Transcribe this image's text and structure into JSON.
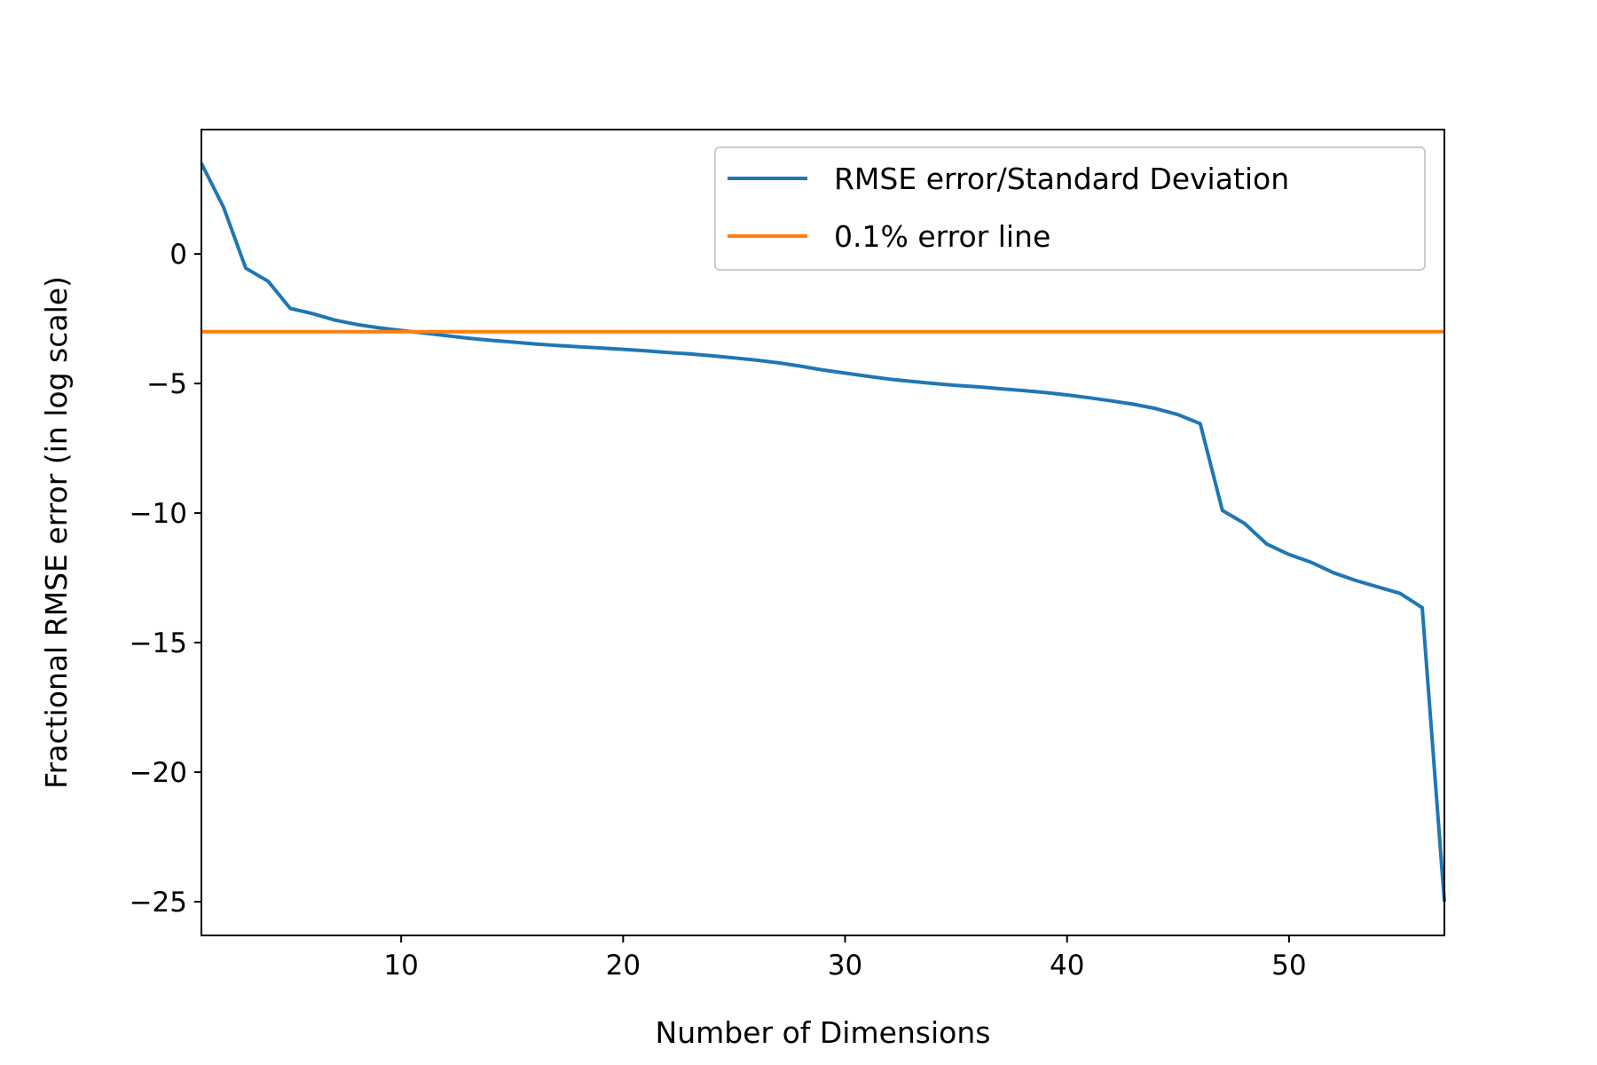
{
  "chart_data": {
    "type": "line",
    "title": "",
    "xlabel": "Number of Dimensions",
    "ylabel": "Fractional RMSE error (in log scale)",
    "xlim": [
      1,
      57
    ],
    "ylim": [
      -26.3,
      4.8
    ],
    "xticks": [
      10,
      20,
      30,
      40,
      50
    ],
    "yticks": [
      0,
      -5,
      -10,
      -15,
      -20,
      -25
    ],
    "grid": false,
    "legend_position": "top-right",
    "series": [
      {
        "name": "RMSE error/Standard Deviation",
        "color": "#1f77b4",
        "x": [
          1,
          2,
          3,
          4,
          5,
          6,
          7,
          8,
          9,
          10,
          11,
          12,
          13,
          14,
          15,
          16,
          17,
          18,
          19,
          20,
          21,
          22,
          23,
          24,
          25,
          26,
          27,
          28,
          29,
          30,
          31,
          32,
          33,
          34,
          35,
          36,
          37,
          38,
          39,
          40,
          41,
          42,
          43,
          44,
          45,
          46,
          47,
          48,
          49,
          50,
          51,
          52,
          53,
          54,
          55,
          56,
          57
        ],
        "y": [
          3.5,
          1.8,
          -0.55,
          -1.05,
          -2.1,
          -2.3,
          -2.55,
          -2.72,
          -2.85,
          -2.95,
          -3.05,
          -3.15,
          -3.25,
          -3.33,
          -3.4,
          -3.47,
          -3.53,
          -3.58,
          -3.63,
          -3.68,
          -3.74,
          -3.8,
          -3.86,
          -3.93,
          -4.01,
          -4.1,
          -4.2,
          -4.33,
          -4.48,
          -4.6,
          -4.72,
          -4.83,
          -4.92,
          -5.0,
          -5.07,
          -5.13,
          -5.2,
          -5.27,
          -5.35,
          -5.44,
          -5.55,
          -5.67,
          -5.8,
          -5.97,
          -6.2,
          -6.55,
          -9.9,
          -10.4,
          -11.2,
          -11.6,
          -11.9,
          -12.3,
          -12.6,
          -12.85,
          -13.1,
          -13.65,
          -25.0
        ]
      },
      {
        "name": "0.1% error line",
        "color": "#ff7f0e",
        "x": [
          1,
          57
        ],
        "y": [
          -3.0,
          -3.0
        ]
      }
    ]
  }
}
